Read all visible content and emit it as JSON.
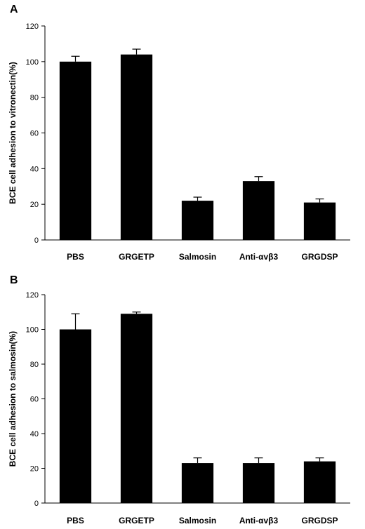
{
  "chart_data": [
    {
      "type": "bar",
      "panel_label": "A",
      "categories": [
        "PBS",
        "GRGETP",
        "Salmosin",
        "Anti-αvβ3",
        "GRGDSP"
      ],
      "values": [
        100,
        104,
        22,
        33,
        21
      ],
      "errors": [
        3,
        3,
        2,
        2.5,
        2
      ],
      "xlabel": "",
      "ylabel": "BCE cell adhesion to vitronectin(%)",
      "ylim": [
        0,
        120
      ],
      "yticks": [
        0,
        20,
        40,
        60,
        80,
        100,
        120
      ],
      "bar_color": "#000000",
      "grid": false
    },
    {
      "type": "bar",
      "panel_label": "B",
      "categories": [
        "PBS",
        "GRGETP",
        "Salmosin",
        "Anti-αvβ3",
        "GRGDSP"
      ],
      "values": [
        100,
        109,
        23,
        23,
        24
      ],
      "errors": [
        9,
        1,
        3,
        3,
        2
      ],
      "xlabel": "",
      "ylabel": "BCE cell adhesion to salmosin(%)",
      "ylim": [
        0,
        120
      ],
      "yticks": [
        0,
        20,
        40,
        60,
        80,
        100,
        120
      ],
      "bar_color": "#000000",
      "grid": false
    }
  ]
}
